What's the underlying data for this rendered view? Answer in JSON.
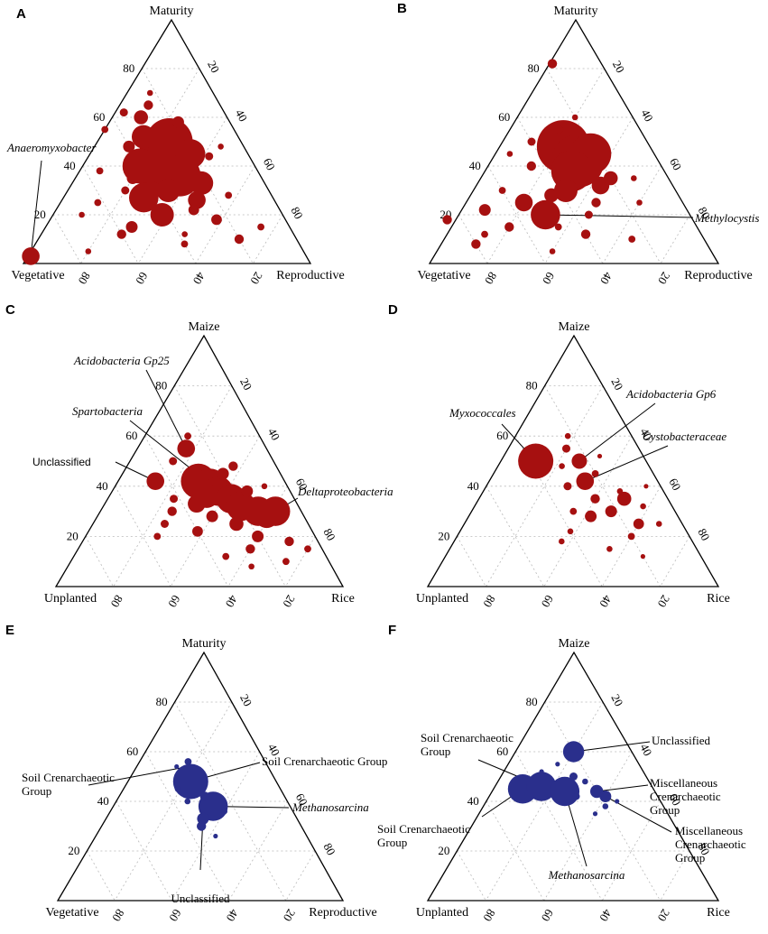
{
  "chart_data": [
    {
      "panel": "A",
      "type": "scatter",
      "subtype": "ternary-bubble",
      "color": "#a61010",
      "vertices": {
        "top": "Maturity",
        "left": "Vegetative",
        "right": "Reproductive"
      },
      "ticks": {
        "left": [
          "20",
          "40",
          "60",
          "80"
        ],
        "right": [
          "20",
          "40",
          "60",
          "80"
        ],
        "bottom": [
          "80",
          "60",
          "40",
          "20"
        ]
      },
      "points": [
        {
          "top": 40,
          "left": 32,
          "size": 5
        },
        {
          "top": 45,
          "left": 27,
          "size": 4.5
        },
        {
          "top": 42,
          "left": 30,
          "size": 4
        },
        {
          "top": 50,
          "left": 25,
          "size": 4
        },
        {
          "top": 36,
          "left": 28,
          "size": 3.5
        },
        {
          "top": 45,
          "left": 20,
          "size": 2.5
        },
        {
          "top": 40,
          "left": 40,
          "size": 3
        },
        {
          "top": 27,
          "left": 45,
          "size": 2.5
        },
        {
          "top": 20,
          "left": 42,
          "size": 2
        },
        {
          "top": 26,
          "left": 27,
          "size": 1.5
        },
        {
          "top": 52,
          "left": 33,
          "size": 2
        },
        {
          "top": 33,
          "left": 22,
          "size": 2
        },
        {
          "top": 30,
          "left": 35,
          "size": 2
        },
        {
          "top": 3,
          "left": 96,
          "size": 1.5
        },
        {
          "top": 60,
          "left": 30,
          "size": 1.2
        },
        {
          "top": 48,
          "left": 40,
          "size": 1
        },
        {
          "top": 15,
          "left": 55,
          "size": 1
        },
        {
          "top": 58,
          "left": 18,
          "size": 1
        },
        {
          "top": 35,
          "left": 45,
          "size": 1
        },
        {
          "top": 22,
          "left": 30,
          "size": 0.9
        },
        {
          "top": 18,
          "left": 24,
          "size": 0.9
        },
        {
          "top": 12,
          "left": 60,
          "size": 0.8
        },
        {
          "top": 10,
          "left": 20,
          "size": 0.8
        },
        {
          "top": 65,
          "left": 25,
          "size": 0.8
        },
        {
          "top": 62,
          "left": 35,
          "size": 0.7
        },
        {
          "top": 44,
          "left": 14,
          "size": 0.7
        },
        {
          "top": 30,
          "left": 50,
          "size": 0.7
        },
        {
          "top": 8,
          "left": 40,
          "size": 0.6
        },
        {
          "top": 25,
          "left": 62,
          "size": 0.6
        },
        {
          "top": 5,
          "left": 75,
          "size": 0.5
        },
        {
          "top": 15,
          "left": 10,
          "size": 0.6
        },
        {
          "top": 70,
          "left": 22,
          "size": 0.5
        },
        {
          "top": 55,
          "left": 45,
          "size": 0.6
        },
        {
          "top": 38,
          "left": 55,
          "size": 0.6
        },
        {
          "top": 20,
          "left": 70,
          "size": 0.5
        },
        {
          "top": 28,
          "left": 15,
          "size": 0.6
        },
        {
          "top": 48,
          "left": 8,
          "size": 0.5
        },
        {
          "top": 12,
          "left": 38,
          "size": 0.5
        }
      ],
      "annotations": [
        {
          "text": "Anaeromyxobacter",
          "italic": true,
          "top": 3,
          "left": 96
        }
      ]
    },
    {
      "panel": "B",
      "type": "scatter",
      "subtype": "ternary-bubble",
      "color": "#a61010",
      "vertices": {
        "top": "Maturity",
        "left": "Vegetative",
        "right": "Reproductive"
      },
      "ticks": {
        "left": [
          "20",
          "40",
          "60",
          "80"
        ],
        "right": [
          "20",
          "40",
          "60",
          "80"
        ],
        "bottom": [
          "80",
          "60",
          "40",
          "20"
        ]
      },
      "points": [
        {
          "top": 48,
          "left": 30,
          "size": 4.5
        },
        {
          "top": 42,
          "left": 28,
          "size": 4.5
        },
        {
          "top": 45,
          "left": 22,
          "size": 3.5
        },
        {
          "top": 38,
          "left": 32,
          "size": 3.5
        },
        {
          "top": 20,
          "left": 50,
          "size": 2.5
        },
        {
          "top": 30,
          "left": 38,
          "size": 2
        },
        {
          "top": 32,
          "left": 25,
          "size": 1.5
        },
        {
          "top": 25,
          "left": 55,
          "size": 1.5
        },
        {
          "top": 28,
          "left": 44,
          "size": 1.2
        },
        {
          "top": 35,
          "left": 20,
          "size": 1.2
        },
        {
          "top": 22,
          "left": 70,
          "size": 1
        },
        {
          "top": 82,
          "left": 17,
          "size": 0.8
        },
        {
          "top": 15,
          "left": 65,
          "size": 0.8
        },
        {
          "top": 12,
          "left": 40,
          "size": 0.8
        },
        {
          "top": 40,
          "left": 45,
          "size": 0.8
        },
        {
          "top": 25,
          "left": 30,
          "size": 0.8
        },
        {
          "top": 8,
          "left": 80,
          "size": 0.8
        },
        {
          "top": 18,
          "left": 85,
          "size": 0.8
        },
        {
          "top": 50,
          "left": 40,
          "size": 0.7
        },
        {
          "top": 55,
          "left": 28,
          "size": 0.7
        },
        {
          "top": 10,
          "left": 25,
          "size": 0.6
        },
        {
          "top": 30,
          "left": 60,
          "size": 0.6
        },
        {
          "top": 20,
          "left": 35,
          "size": 0.7
        },
        {
          "top": 15,
          "left": 48,
          "size": 0.6
        },
        {
          "top": 5,
          "left": 55,
          "size": 0.5
        },
        {
          "top": 35,
          "left": 12,
          "size": 0.5
        },
        {
          "top": 60,
          "left": 20,
          "size": 0.5
        },
        {
          "top": 25,
          "left": 15,
          "size": 0.5
        },
        {
          "top": 45,
          "left": 50,
          "size": 0.5
        },
        {
          "top": 12,
          "left": 75,
          "size": 0.6
        }
      ],
      "annotations": [
        {
          "text": "Methylocystis",
          "italic": true,
          "top": 20,
          "left": 50
        }
      ]
    },
    {
      "panel": "C",
      "type": "scatter",
      "subtype": "ternary-bubble",
      "color": "#a61010",
      "vertices": {
        "top": "Maize",
        "left": "Unplanted",
        "right": "Rice"
      },
      "ticks": {
        "left": [
          "20",
          "40",
          "60",
          "80"
        ],
        "right": [
          "20",
          "40",
          "60",
          "80"
        ],
        "bottom": [
          "80",
          "60",
          "40",
          "20"
        ]
      },
      "points": [
        {
          "top": 42,
          "left": 30,
          "size": 3
        },
        {
          "top": 40,
          "left": 27,
          "size": 3
        },
        {
          "top": 38,
          "left": 25,
          "size": 2.5
        },
        {
          "top": 35,
          "left": 22,
          "size": 2.5
        },
        {
          "top": 32,
          "left": 20,
          "size": 2.5
        },
        {
          "top": 36,
          "left": 30,
          "size": 2
        },
        {
          "top": 30,
          "left": 15,
          "size": 2.5
        },
        {
          "top": 28,
          "left": 13,
          "size": 2
        },
        {
          "top": 30,
          "left": 9,
          "size": 2.5
        },
        {
          "top": 55,
          "left": 28,
          "size": 1.5
        },
        {
          "top": 42,
          "left": 45,
          "size": 1.5
        },
        {
          "top": 33,
          "left": 35,
          "size": 1.5
        },
        {
          "top": 25,
          "left": 25,
          "size": 1.2
        },
        {
          "top": 28,
          "left": 32,
          "size": 1
        },
        {
          "top": 45,
          "left": 20,
          "size": 1
        },
        {
          "top": 38,
          "left": 15,
          "size": 1
        },
        {
          "top": 20,
          "left": 20,
          "size": 1
        },
        {
          "top": 22,
          "left": 40,
          "size": 0.9
        },
        {
          "top": 15,
          "left": 25,
          "size": 0.8
        },
        {
          "top": 30,
          "left": 45,
          "size": 0.8
        },
        {
          "top": 48,
          "left": 15,
          "size": 0.8
        },
        {
          "top": 18,
          "left": 10,
          "size": 0.8
        },
        {
          "top": 50,
          "left": 35,
          "size": 0.7
        },
        {
          "top": 25,
          "left": 50,
          "size": 0.7
        },
        {
          "top": 12,
          "left": 35,
          "size": 0.6
        },
        {
          "top": 10,
          "left": 15,
          "size": 0.6
        },
        {
          "top": 35,
          "left": 42,
          "size": 0.7
        },
        {
          "top": 20,
          "left": 55,
          "size": 0.6
        },
        {
          "top": 60,
          "left": 25,
          "size": 0.6
        },
        {
          "top": 15,
          "left": 5,
          "size": 0.6
        },
        {
          "top": 40,
          "left": 8,
          "size": 0.5
        },
        {
          "top": 8,
          "left": 28,
          "size": 0.5
        }
      ],
      "annotations": [
        {
          "text": "Acidobacteria Gp25",
          "italic": true,
          "top": 55,
          "left": 28
        },
        {
          "text": "Spartobacteria",
          "italic": true,
          "top": 45,
          "left": 29
        },
        {
          "text": "Unclassified",
          "italic": false,
          "top": 42,
          "left": 45
        },
        {
          "text": "Deltaproteobacteria",
          "italic": true,
          "top": 30,
          "left": 9
        }
      ]
    },
    {
      "panel": "D",
      "type": "scatter",
      "subtype": "ternary-bubble",
      "color": "#a61010",
      "vertices": {
        "top": "Maize",
        "left": "Unplanted",
        "right": "Rice"
      },
      "ticks": {
        "left": [
          "20",
          "40",
          "60",
          "80"
        ],
        "right": [
          "20",
          "40",
          "60",
          "80"
        ],
        "bottom": [
          "80",
          "60",
          "40",
          "20"
        ]
      },
      "points": [
        {
          "top": 50,
          "left": 38,
          "size": 3
        },
        {
          "top": 50,
          "left": 23,
          "size": 1.3
        },
        {
          "top": 42,
          "left": 25,
          "size": 1.5
        },
        {
          "top": 35,
          "left": 15,
          "size": 1.2
        },
        {
          "top": 30,
          "left": 22,
          "size": 1
        },
        {
          "top": 28,
          "left": 30,
          "size": 1
        },
        {
          "top": 25,
          "left": 15,
          "size": 0.9
        },
        {
          "top": 35,
          "left": 25,
          "size": 0.8
        },
        {
          "top": 55,
          "left": 25,
          "size": 0.7
        },
        {
          "top": 40,
          "left": 32,
          "size": 0.7
        },
        {
          "top": 20,
          "left": 20,
          "size": 0.6
        },
        {
          "top": 30,
          "left": 35,
          "size": 0.6
        },
        {
          "top": 45,
          "left": 20,
          "size": 0.6
        },
        {
          "top": 22,
          "left": 40,
          "size": 0.5
        },
        {
          "top": 15,
          "left": 30,
          "size": 0.5
        },
        {
          "top": 38,
          "left": 15,
          "size": 0.5
        },
        {
          "top": 32,
          "left": 10,
          "size": 0.5
        },
        {
          "top": 60,
          "left": 22,
          "size": 0.5
        },
        {
          "top": 18,
          "left": 45,
          "size": 0.5
        },
        {
          "top": 48,
          "left": 30,
          "size": 0.5
        },
        {
          "top": 25,
          "left": 8,
          "size": 0.5
        },
        {
          "top": 12,
          "left": 20,
          "size": 0.4
        },
        {
          "top": 40,
          "left": 5,
          "size": 0.4
        },
        {
          "top": 52,
          "left": 15,
          "size": 0.4
        }
      ],
      "annotations": [
        {
          "text": "Myxococcales",
          "italic": true,
          "top": 50,
          "left": 38
        },
        {
          "text": "Acidobacteria Gp6",
          "italic": true,
          "top": 50,
          "left": 23
        },
        {
          "text": "Cystobacteraceae",
          "italic": true,
          "top": 42,
          "left": 25
        }
      ]
    },
    {
      "panel": "E",
      "type": "scatter",
      "subtype": "ternary-bubble",
      "color": "#2a2f8c",
      "vertices": {
        "top": "Maturity",
        "left": "Vegetative",
        "right": "Reproductive"
      },
      "ticks": {
        "left": [
          "20",
          "40",
          "60",
          "80"
        ],
        "right": [
          "20",
          "40",
          "60",
          "80"
        ],
        "bottom": [
          "80",
          "60",
          "40",
          "20"
        ]
      },
      "points": [
        {
          "top": 48,
          "left": 30,
          "size": 3
        },
        {
          "top": 38,
          "left": 27,
          "size": 2.5
        },
        {
          "top": 33,
          "left": 33,
          "size": 1
        },
        {
          "top": 30,
          "left": 35,
          "size": 0.8
        },
        {
          "top": 42,
          "left": 28,
          "size": 0.8
        },
        {
          "top": 56,
          "left": 27,
          "size": 0.6
        },
        {
          "top": 45,
          "left": 36,
          "size": 0.5
        },
        {
          "top": 36,
          "left": 24,
          "size": 0.5
        },
        {
          "top": 26,
          "left": 32,
          "size": 0.4
        },
        {
          "top": 40,
          "left": 35,
          "size": 0.5
        },
        {
          "top": 54,
          "left": 32,
          "size": 0.4
        }
      ],
      "annotations": [
        {
          "text": "Soil Crenarchaeotic Group",
          "italic": false,
          "top": 54,
          "left": 28
        },
        {
          "text": "Soil Crenarchaeotic Group",
          "italic": false,
          "top": 48,
          "left": 30
        },
        {
          "text": "Methanosarcina",
          "italic": true,
          "top": 38,
          "left": 27
        },
        {
          "text": "Unclassified",
          "italic": false,
          "top": 33,
          "left": 33
        }
      ]
    },
    {
      "panel": "F",
      "type": "scatter",
      "subtype": "ternary-bubble",
      "color": "#2a2f8c",
      "vertices": {
        "top": "Maize",
        "left": "Unplanted",
        "right": "Rice"
      },
      "ticks": {
        "left": [
          "20",
          "40",
          "60",
          "80"
        ],
        "right": [
          "20",
          "40",
          "60",
          "80"
        ],
        "bottom": [
          "80",
          "60",
          "40",
          "20"
        ]
      },
      "points": [
        {
          "top": 45,
          "left": 45,
          "size": 2.5
        },
        {
          "top": 46,
          "left": 38,
          "size": 2.5
        },
        {
          "top": 44,
          "left": 31,
          "size": 2.5
        },
        {
          "top": 60,
          "left": 20,
          "size": 1.8
        },
        {
          "top": 44,
          "left": 20,
          "size": 1.1
        },
        {
          "top": 42,
          "left": 18,
          "size": 1
        },
        {
          "top": 50,
          "left": 25,
          "size": 0.7
        },
        {
          "top": 42,
          "left": 28,
          "size": 0.6
        },
        {
          "top": 38,
          "left": 20,
          "size": 0.5
        },
        {
          "top": 48,
          "left": 22,
          "size": 0.5
        },
        {
          "top": 40,
          "left": 15,
          "size": 0.4
        },
        {
          "top": 52,
          "left": 35,
          "size": 0.4
        },
        {
          "top": 55,
          "left": 28,
          "size": 0.4
        },
        {
          "top": 35,
          "left": 25,
          "size": 0.4
        }
      ],
      "annotations": [
        {
          "text": "Unclassified",
          "italic": false,
          "top": 60,
          "left": 20
        },
        {
          "text": "Soil Crenarchaeotic Group",
          "italic": false,
          "top": 46,
          "left": 38
        },
        {
          "text": "Miscellaneous Crenarchaeotic Group",
          "italic": false,
          "top": 44,
          "left": 20
        },
        {
          "text": "Miscellaneous Crenarchaeotic Group",
          "italic": false,
          "top": 42,
          "left": 18
        },
        {
          "text": "Soil Crenarchaeotic Group",
          "italic": false,
          "top": 45,
          "left": 45
        },
        {
          "text": "Methanosarcina",
          "italic": true,
          "top": 44,
          "left": 31
        }
      ]
    }
  ]
}
